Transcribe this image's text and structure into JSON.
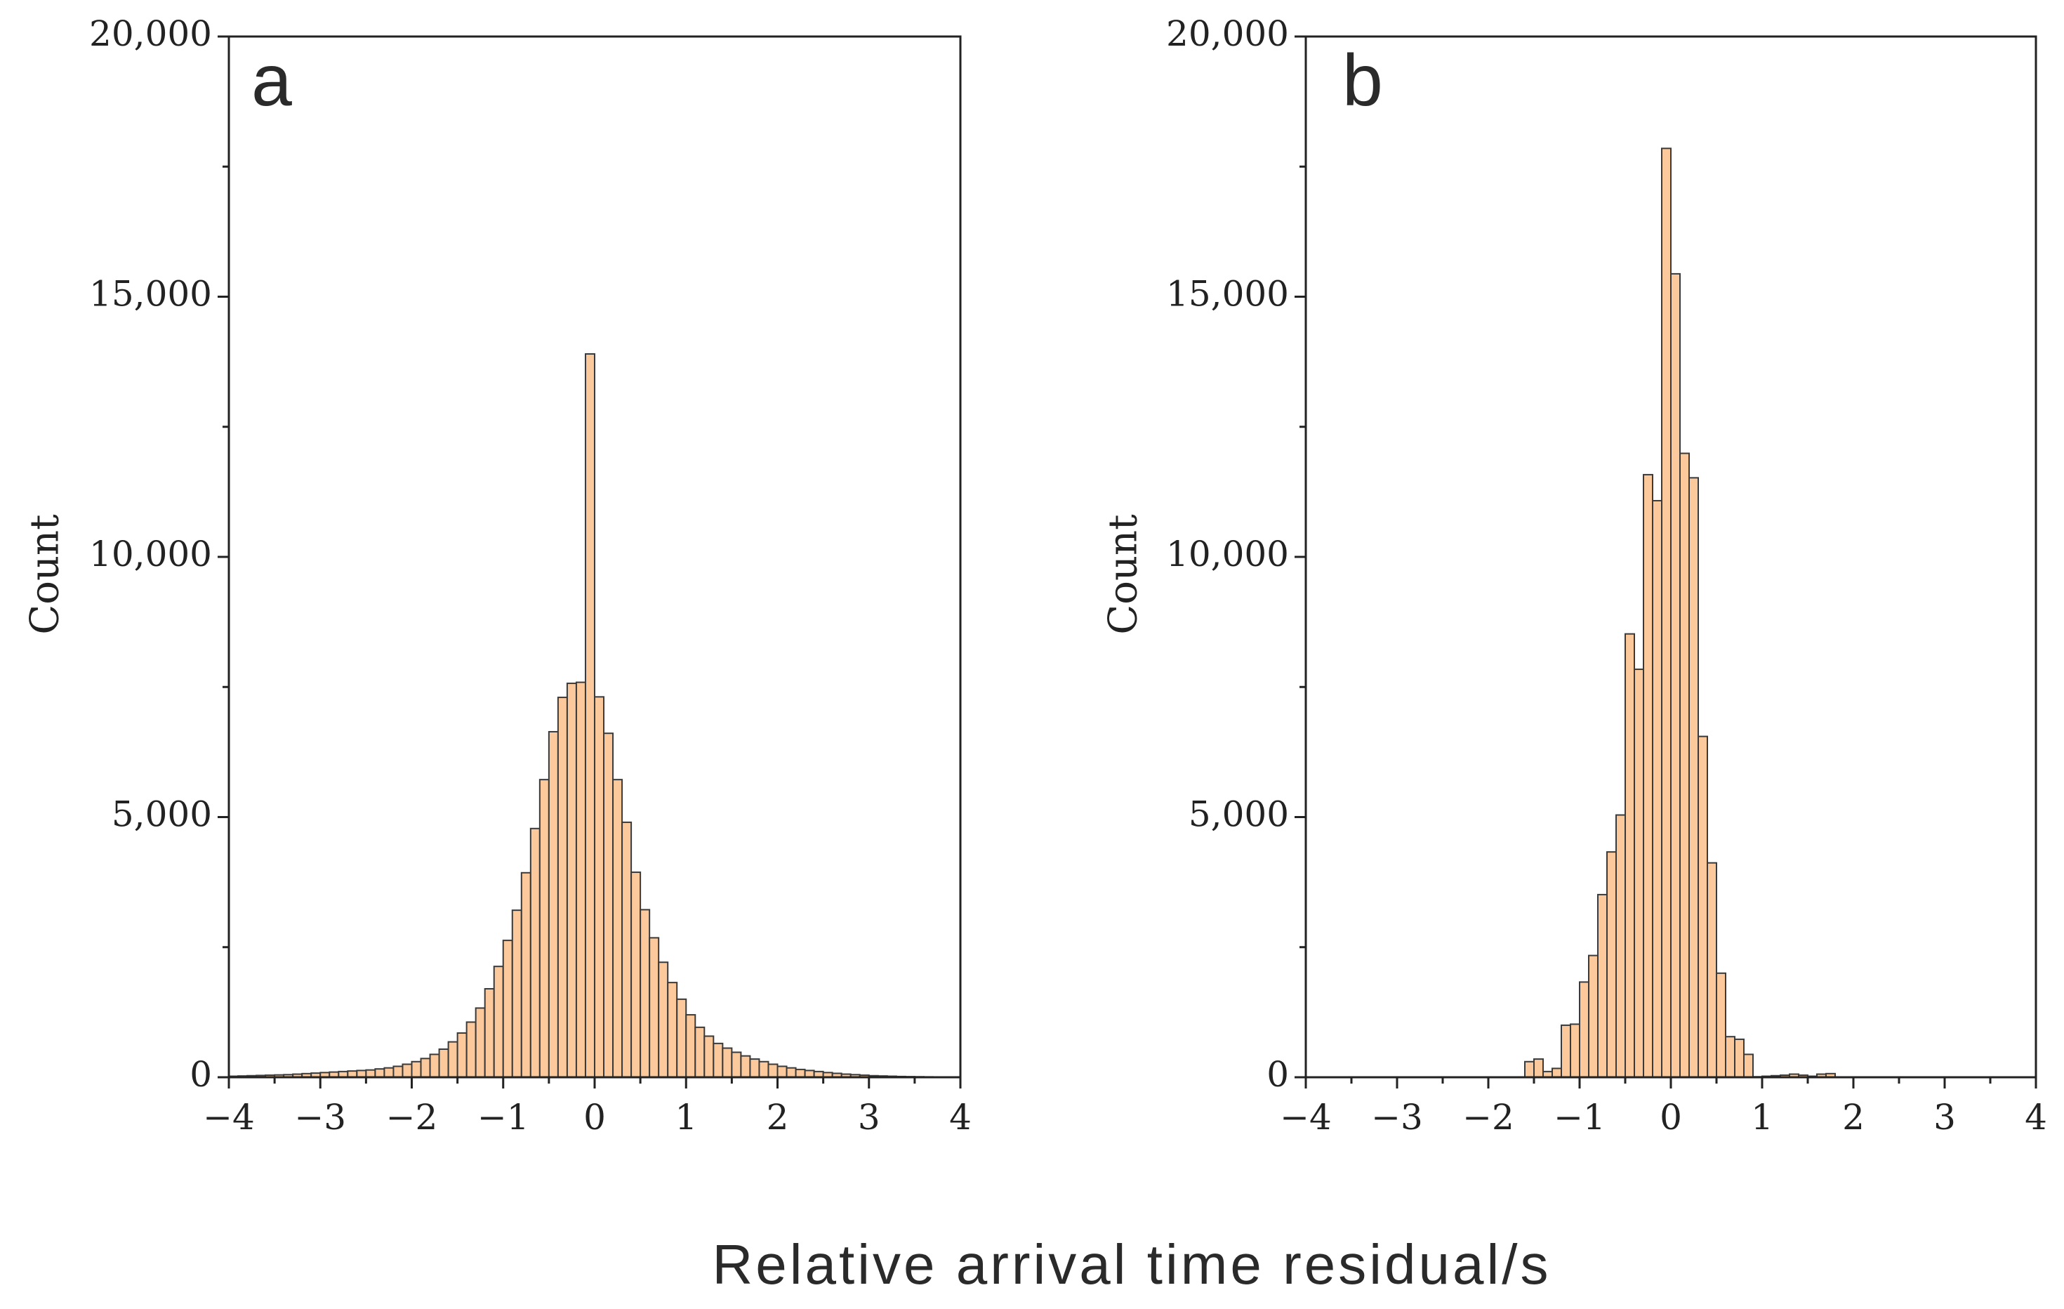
{
  "figure": {
    "shared_xlabel": "Relative arrival time residual/s"
  },
  "chart_data": [
    {
      "type": "bar",
      "panel_label": "a",
      "title": "",
      "xlabel": "",
      "ylabel": "Count",
      "xlim": [
        -4,
        4
      ],
      "ylim": [
        0,
        20000
      ],
      "xticks": [
        -4,
        -3,
        -2,
        -1,
        0,
        1,
        2,
        3,
        4
      ],
      "xtick_labels": [
        "−4",
        "−3",
        "−2",
        "−1",
        "0",
        "1",
        "2",
        "3",
        "4"
      ],
      "yticks": [
        0,
        5000,
        10000,
        15000,
        20000
      ],
      "ytick_labels": [
        "0",
        "5,000",
        "10,000",
        "15,000",
        "20,000"
      ],
      "bin_width": 0.1,
      "bin_start": -4.0,
      "values": [
        20,
        25,
        30,
        35,
        40,
        45,
        50,
        60,
        70,
        80,
        90,
        100,
        110,
        120,
        130,
        140,
        160,
        180,
        210,
        250,
        300,
        360,
        440,
        540,
        680,
        850,
        1060,
        1330,
        1700,
        2130,
        2630,
        3210,
        3930,
        4780,
        5720,
        6640,
        7300,
        7570,
        7590,
        13900,
        7310,
        6610,
        5720,
        4900,
        3940,
        3220,
        2680,
        2210,
        1820,
        1500,
        1200,
        960,
        790,
        650,
        560,
        480,
        410,
        350,
        300,
        250,
        210,
        180,
        150,
        130,
        110,
        90,
        75,
        60,
        50,
        40,
        30,
        25,
        20,
        15,
        12,
        10,
        8,
        6,
        5,
        4
      ]
    },
    {
      "type": "bar",
      "panel_label": "b",
      "title": "",
      "xlabel": "",
      "ylabel": "Count",
      "xlim": [
        -4,
        4
      ],
      "ylim": [
        0,
        20000
      ],
      "xticks": [
        -4,
        -3,
        -2,
        -1,
        0,
        1,
        2,
        3,
        4
      ],
      "xtick_labels": [
        "−4",
        "−3",
        "−2",
        "−1",
        "0",
        "1",
        "2",
        "3",
        "4"
      ],
      "yticks": [
        0,
        5000,
        10000,
        15000,
        20000
      ],
      "ytick_labels": [
        "0",
        "5,000",
        "10,000",
        "15,000",
        "20,000"
      ],
      "bin_width": 0.1,
      "bin_start": -1.6,
      "values": [
        300,
        350,
        110,
        170,
        1000,
        1020,
        1830,
        2340,
        3510,
        4330,
        5040,
        8520,
        7840,
        11580,
        11080,
        17850,
        15440,
        11990,
        11520,
        6550,
        4120,
        2000,
        780,
        730,
        440,
        10,
        20,
        30,
        40,
        60,
        40,
        20,
        60,
        70
      ]
    }
  ]
}
